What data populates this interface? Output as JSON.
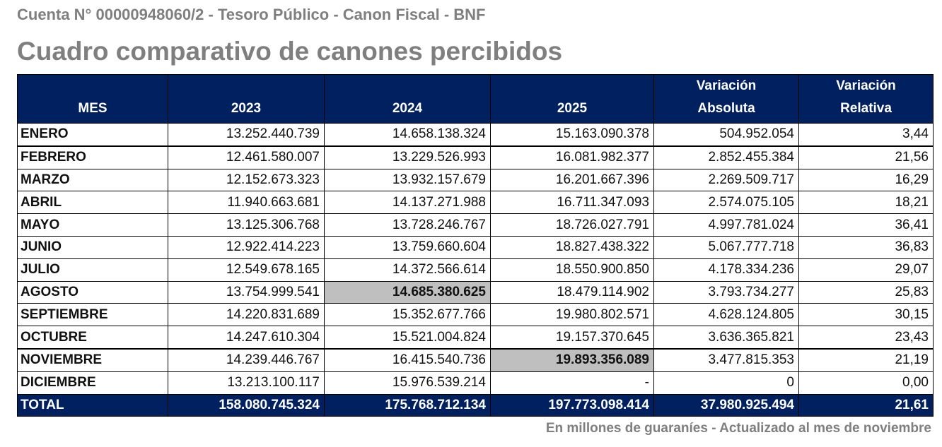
{
  "header": {
    "subtitle": "Cuenta N° 00000948060/2 - Tesoro Público - Canon Fiscal - BNF",
    "title": "Cuadro comparativo de canones percibidos"
  },
  "table": {
    "columns": [
      "MES",
      "2023",
      "2024",
      "2025",
      "Variación Absoluta",
      "Variación Relativa"
    ],
    "col_lines": [
      [
        "MES"
      ],
      [
        "2023"
      ],
      [
        "2024"
      ],
      [
        "2025"
      ],
      [
        "Variación",
        "Absoluta"
      ],
      [
        "Variación",
        "Relativa"
      ]
    ],
    "rows": [
      [
        "ENERO",
        "13.252.440.739",
        "14.658.138.324",
        "15.163.090.378",
        "504.952.054",
        "3,44"
      ],
      [
        "FEBRERO",
        "12.461.580.007",
        "13.229.526.993",
        "16.081.982.377",
        "2.852.455.384",
        "21,56"
      ],
      [
        "MARZO",
        "12.152.673.323",
        "13.932.157.679",
        "16.201.667.396",
        "2.269.509.717",
        "16,29"
      ],
      [
        "ABRIL",
        "11.940.663.681",
        "14.137.271.988",
        "16.711.347.093",
        "2.574.075.105",
        "18,21"
      ],
      [
        "MAYO",
        "13.125.306.768",
        "13.728.246.767",
        "18.726.027.791",
        "4.997.781.024",
        "36,41"
      ],
      [
        "JUNIO",
        "12.922.414.223",
        "13.759.660.604",
        "18.827.438.322",
        "5.067.777.718",
        "36,83"
      ],
      [
        "JULIO",
        "12.549.678.165",
        "14.372.566.614",
        "18.550.900.850",
        "4.178.334.236",
        "29,07"
      ],
      [
        "AGOSTO",
        "13.754.999.541",
        "14.685.380.625",
        "18.479.114.902",
        "3.793.734.277",
        "25,83"
      ],
      [
        "SEPTIEMBRE",
        "14.220.831.689",
        "15.352.677.766",
        "19.980.802.571",
        "4.628.124.805",
        "30,15"
      ],
      [
        "OCTUBRE",
        "14.247.610.304",
        "15.521.004.824",
        "19.157.370.645",
        "3.636.365.821",
        "23,43"
      ],
      [
        "NOVIEMBRE",
        "14.239.446.767",
        "16.415.540.736",
        "19.893.356.089",
        "3.477.815.353",
        "21,19"
      ],
      [
        "DICIEMBRE",
        "13.213.100.117",
        "15.976.539.214",
        "-",
        "0",
        "0,00"
      ]
    ],
    "total": [
      "TOTAL",
      "158.080.745.324",
      "175.768.712.134",
      "197.773.098.414",
      "37.980.925.494",
      "21,61"
    ]
  },
  "footnote": "En millones de guaraníes - Actualizado al mes de noviembre",
  "colors": {
    "header_bg": "#002060",
    "highlight": "#bfbfbf",
    "title_gray": "#7f7f7f"
  }
}
